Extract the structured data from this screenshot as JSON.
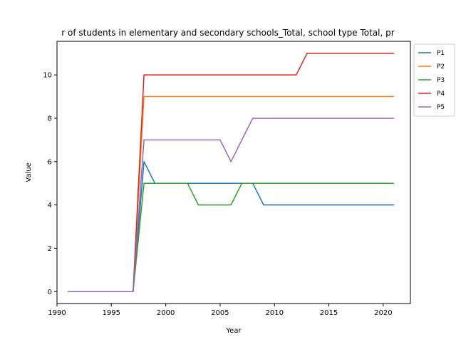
{
  "chart_data": {
    "type": "line",
    "title": "r of students in elementary and secondary schools_Total, school type Total, pr",
    "xlabel": "Year",
    "ylabel": "Value",
    "xlim": [
      1990,
      2022.5
    ],
    "ylim": [
      -0.55,
      11.55
    ],
    "xticks": [
      1990,
      1995,
      2000,
      2005,
      2010,
      2015,
      2020
    ],
    "yticks": [
      0,
      2,
      4,
      6,
      8,
      10
    ],
    "grid": false,
    "legend_position": "top-right-outside",
    "x": [
      1991,
      1992,
      1993,
      1994,
      1995,
      1996,
      1997,
      1998,
      1999,
      2000,
      2001,
      2002,
      2003,
      2004,
      2005,
      2006,
      2007,
      2008,
      2009,
      2010,
      2011,
      2012,
      2013,
      2014,
      2015,
      2016,
      2017,
      2018,
      2019,
      2020,
      2021
    ],
    "series": [
      {
        "name": "P1",
        "color": "#1f77b4",
        "values": [
          0,
          0,
          0,
          0,
          0,
          0,
          0,
          6,
          5,
          5,
          5,
          5,
          5,
          5,
          5,
          5,
          5,
          5,
          4,
          4,
          4,
          4,
          4,
          4,
          4,
          4,
          4,
          4,
          4,
          4,
          4
        ]
      },
      {
        "name": "P2",
        "color": "#ff7f0e",
        "values": [
          0,
          0,
          0,
          0,
          0,
          0,
          0,
          9,
          9,
          9,
          9,
          9,
          9,
          9,
          9,
          9,
          9,
          9,
          9,
          9,
          9,
          9,
          9,
          9,
          9,
          9,
          9,
          9,
          9,
          9,
          9
        ]
      },
      {
        "name": "P3",
        "color": "#2ca02c",
        "values": [
          0,
          0,
          0,
          0,
          0,
          0,
          0,
          5,
          5,
          5,
          5,
          5,
          4,
          4,
          4,
          4,
          5,
          5,
          5,
          5,
          5,
          5,
          5,
          5,
          5,
          5,
          5,
          5,
          5,
          5,
          5
        ]
      },
      {
        "name": "P4",
        "color": "#d62728",
        "values": [
          0,
          0,
          0,
          0,
          0,
          0,
          0,
          10,
          10,
          10,
          10,
          10,
          10,
          10,
          10,
          10,
          10,
          10,
          10,
          10,
          10,
          10,
          11,
          11,
          11,
          11,
          11,
          11,
          11,
          11,
          11
        ]
      },
      {
        "name": "P5",
        "color": "#9467bd",
        "values": [
          0,
          0,
          0,
          0,
          0,
          0,
          0,
          7,
          7,
          7,
          7,
          7,
          7,
          7,
          7,
          6,
          7,
          8,
          8,
          8,
          8,
          8,
          8,
          8,
          8,
          8,
          8,
          8,
          8,
          8,
          8
        ]
      }
    ]
  }
}
